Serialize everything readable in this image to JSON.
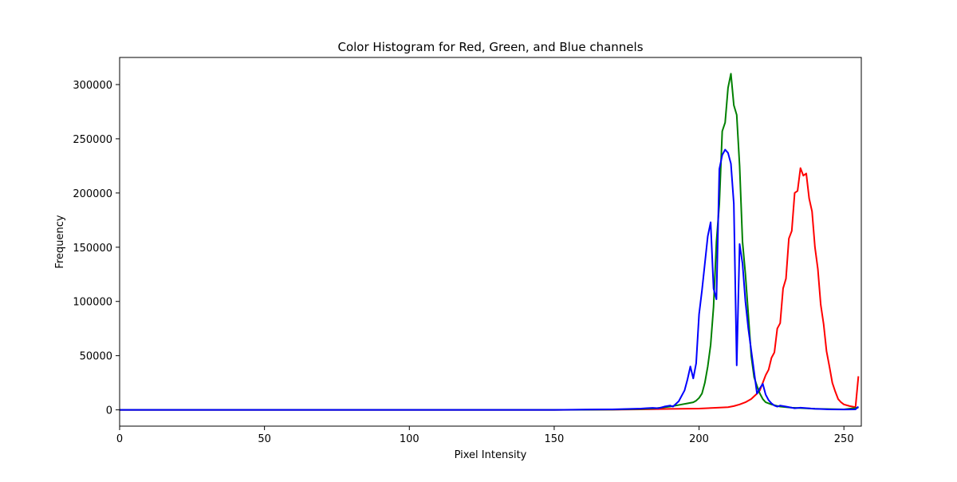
{
  "chart_data": {
    "type": "line",
    "title": "Color Histogram for Red, Green, and Blue channels",
    "xlabel": "Pixel Intensity",
    "ylabel": "Frequency",
    "xlim": [
      0,
      256
    ],
    "ylim": [
      -15000,
      325000
    ],
    "xticks": [
      0,
      50,
      100,
      150,
      200,
      250
    ],
    "yticks": [
      0,
      50000,
      100000,
      150000,
      200000,
      250000,
      300000
    ],
    "grid": false,
    "legend": "none",
    "series": [
      {
        "color": "#ff0000",
        "points": [
          [
            0,
            0
          ],
          [
            150,
            0
          ],
          [
            170,
            200
          ],
          [
            180,
            500
          ],
          [
            190,
            900
          ],
          [
            200,
            1200
          ],
          [
            205,
            1800
          ],
          [
            210,
            2500
          ],
          [
            212,
            3500
          ],
          [
            214,
            5000
          ],
          [
            216,
            7000
          ],
          [
            218,
            10000
          ],
          [
            219,
            12500
          ],
          [
            220,
            15000
          ],
          [
            221,
            18000
          ],
          [
            222,
            25000
          ],
          [
            223,
            32000
          ],
          [
            224,
            37000
          ],
          [
            225,
            48000
          ],
          [
            226,
            53000
          ],
          [
            227,
            75000
          ],
          [
            228,
            80000
          ],
          [
            229,
            112000
          ],
          [
            230,
            121000
          ],
          [
            231,
            158000
          ],
          [
            232,
            165000
          ],
          [
            233,
            200000
          ],
          [
            234,
            202000
          ],
          [
            235,
            223000
          ],
          [
            236,
            216000
          ],
          [
            237,
            218000
          ],
          [
            238,
            195000
          ],
          [
            239,
            183000
          ],
          [
            240,
            150000
          ],
          [
            241,
            130000
          ],
          [
            242,
            97000
          ],
          [
            243,
            79000
          ],
          [
            244,
            54000
          ],
          [
            245,
            40000
          ],
          [
            246,
            25000
          ],
          [
            247,
            17000
          ],
          [
            248,
            10000
          ],
          [
            249,
            7000
          ],
          [
            250,
            5000
          ],
          [
            252,
            3500
          ],
          [
            254,
            2500
          ],
          [
            255,
            31000
          ]
        ]
      },
      {
        "color": "#008000",
        "points": [
          [
            0,
            0
          ],
          [
            150,
            0
          ],
          [
            170,
            300
          ],
          [
            180,
            800
          ],
          [
            185,
            1500
          ],
          [
            190,
            3000
          ],
          [
            192,
            4000
          ],
          [
            194,
            5000
          ],
          [
            196,
            6000
          ],
          [
            198,
            7000
          ],
          [
            199,
            8500
          ],
          [
            200,
            11000
          ],
          [
            201,
            15000
          ],
          [
            202,
            25000
          ],
          [
            203,
            40000
          ],
          [
            204,
            60000
          ],
          [
            205,
            95000
          ],
          [
            206,
            155000
          ],
          [
            207,
            190000
          ],
          [
            208,
            257000
          ],
          [
            209,
            265000
          ],
          [
            210,
            297000
          ],
          [
            211,
            310000
          ],
          [
            212,
            281000
          ],
          [
            213,
            272000
          ],
          [
            214,
            225000
          ],
          [
            215,
            155000
          ],
          [
            216,
            125000
          ],
          [
            217,
            88000
          ],
          [
            218,
            50000
          ],
          [
            219,
            30000
          ],
          [
            220,
            22000
          ],
          [
            221,
            15000
          ],
          [
            222,
            10000
          ],
          [
            223,
            7000
          ],
          [
            225,
            5000
          ],
          [
            228,
            3000
          ],
          [
            232,
            2000
          ],
          [
            240,
            1000
          ],
          [
            250,
            500
          ],
          [
            255,
            2000
          ]
        ]
      },
      {
        "color": "#0000ff",
        "points": [
          [
            0,
            0
          ],
          [
            150,
            0
          ],
          [
            160,
            300
          ],
          [
            170,
            500
          ],
          [
            175,
            800
          ],
          [
            180,
            1200
          ],
          [
            182,
            1600
          ],
          [
            184,
            1800
          ],
          [
            186,
            1500
          ],
          [
            188,
            3000
          ],
          [
            190,
            4000
          ],
          [
            191,
            3000
          ],
          [
            193,
            8000
          ],
          [
            195,
            18000
          ],
          [
            196,
            28000
          ],
          [
            197,
            40000
          ],
          [
            198,
            29000
          ],
          [
            199,
            43000
          ],
          [
            200,
            88000
          ],
          [
            201,
            110000
          ],
          [
            202,
            135000
          ],
          [
            203,
            160000
          ],
          [
            204,
            173000
          ],
          [
            205,
            112000
          ],
          [
            206,
            102000
          ],
          [
            207,
            222000
          ],
          [
            208,
            235000
          ],
          [
            209,
            240000
          ],
          [
            210,
            237000
          ],
          [
            211,
            227000
          ],
          [
            212,
            190000
          ],
          [
            213,
            41000
          ],
          [
            214,
            153000
          ],
          [
            215,
            135000
          ],
          [
            216,
            100000
          ],
          [
            217,
            75000
          ],
          [
            218,
            55000
          ],
          [
            219,
            35000
          ],
          [
            220,
            15000
          ],
          [
            221,
            20000
          ],
          [
            222,
            24000
          ],
          [
            223,
            14000
          ],
          [
            224,
            9000
          ],
          [
            225,
            6000
          ],
          [
            226,
            4000
          ],
          [
            227,
            3000
          ],
          [
            228,
            4000
          ],
          [
            230,
            3000
          ],
          [
            232,
            2000
          ],
          [
            233,
            1500
          ],
          [
            235,
            2000
          ],
          [
            240,
            1000
          ],
          [
            245,
            500
          ],
          [
            250,
            400
          ],
          [
            254,
            500
          ],
          [
            255,
            3000
          ]
        ]
      }
    ]
  }
}
